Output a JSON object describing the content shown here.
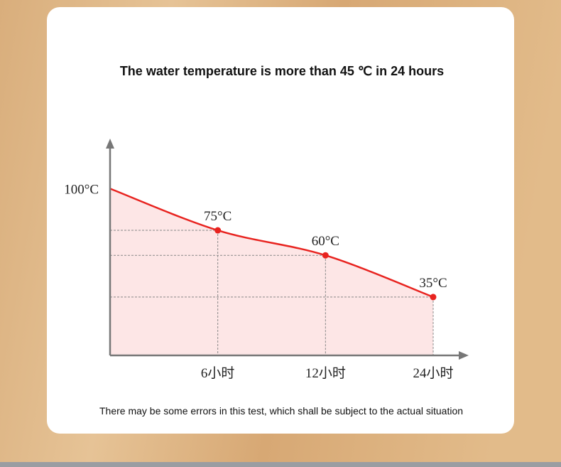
{
  "chart_data": {
    "type": "line",
    "title": "The water temperature is more than 45 ℃ in 24 hours",
    "note": "There may be some errors in this test, which shall be subject to the actual situation",
    "categories": [
      null,
      "6小时",
      "12小时",
      "24小时"
    ],
    "values": [
      100,
      75,
      60,
      35
    ],
    "value_labels": [
      null,
      "75°C",
      "60°C",
      "35°C"
    ],
    "color": "#e8231f",
    "ylim": [
      0,
      130
    ],
    "yticks": [
      {
        "value": 100,
        "label": "100°C"
      }
    ],
    "grid": false
  }
}
